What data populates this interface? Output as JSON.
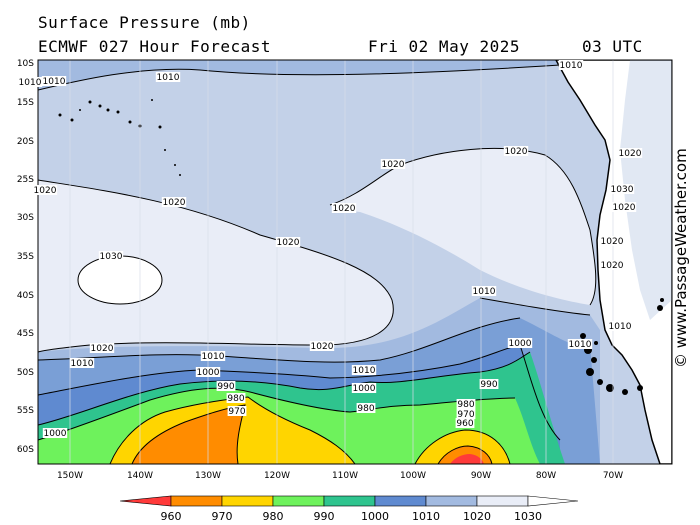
{
  "header": {
    "title": "Surface Pressure (mb)",
    "model": "ECMWF 027 Hour Forecast",
    "date": "Fri 02 May 2025",
    "time": "03 UTC"
  },
  "credit": "© www.PassageWeather.com",
  "map": {
    "lat_labels": [
      "10S",
      "15S",
      "20S",
      "25S",
      "30S",
      "35S",
      "40S",
      "45S",
      "50S",
      "55S",
      "60S"
    ],
    "lon_labels": [
      "150W",
      "140W",
      "130W",
      "120W",
      "110W",
      "100W",
      "90W",
      "80W",
      "70W"
    ],
    "colors": {
      "p1030": "#e9edf7",
      "p1020": "#c3d1e8",
      "p1015": "#a2bae0",
      "p1010": "#7a9fd6",
      "p1000": "#5f8ad0",
      "p990": "#2fc48e",
      "p980": "#6ef25c",
      "p970": "#ffd500",
      "p960": "#ff8c00",
      "p950": "#ff3a3a",
      "land": "#ffffff"
    },
    "contour_labels": [
      {
        "id": "c1",
        "text": "1010"
      },
      {
        "id": "c2",
        "text": "1010"
      },
      {
        "id": "c3",
        "text": "1020"
      },
      {
        "id": "c4",
        "text": "1020"
      },
      {
        "id": "c5",
        "text": "1020"
      },
      {
        "id": "c6",
        "text": "1020"
      },
      {
        "id": "c7",
        "text": "1020"
      },
      {
        "id": "c8",
        "text": "1030"
      },
      {
        "id": "c9",
        "text": "1020"
      },
      {
        "id": "c10",
        "text": "1020"
      },
      {
        "id": "c11",
        "text": "1010"
      },
      {
        "id": "c12",
        "text": "1010"
      },
      {
        "id": "c13",
        "text": "1010"
      },
      {
        "id": "c14",
        "text": "1010"
      },
      {
        "id": "c15",
        "text": "1000"
      },
      {
        "id": "c16",
        "text": "1010"
      },
      {
        "id": "c17",
        "text": "1000"
      },
      {
        "id": "c18",
        "text": "990"
      },
      {
        "id": "c19",
        "text": "1000"
      },
      {
        "id": "c20",
        "text": "980"
      },
      {
        "id": "c21",
        "text": "970"
      },
      {
        "id": "c22",
        "text": "990"
      },
      {
        "id": "c23",
        "text": "980"
      },
      {
        "id": "c24",
        "text": "980"
      },
      {
        "id": "c25",
        "text": "970"
      },
      {
        "id": "c26",
        "text": "960"
      },
      {
        "id": "c27",
        "text": "1000"
      },
      {
        "id": "c28",
        "text": "1010"
      },
      {
        "id": "c29",
        "text": "1020"
      },
      {
        "id": "c30",
        "text": "1020"
      },
      {
        "id": "c31",
        "text": "1030"
      },
      {
        "id": "c32",
        "text": "1020"
      },
      {
        "id": "c33",
        "text": "1020"
      },
      {
        "id": "c34",
        "text": "1010"
      },
      {
        "id": "c35",
        "text": "1010"
      },
      {
        "id": "c36",
        "text": "1020"
      }
    ]
  },
  "legend": {
    "colors": [
      "#ff3a3a",
      "#ff8c00",
      "#ffd500",
      "#6ef25c",
      "#2fc48e",
      "#5f8ad0",
      "#a2bae0",
      "#e9edf7",
      "#ffffff"
    ],
    "ticks": [
      "960",
      "970",
      "980",
      "990",
      "1000",
      "1010",
      "1020",
      "1030"
    ]
  }
}
